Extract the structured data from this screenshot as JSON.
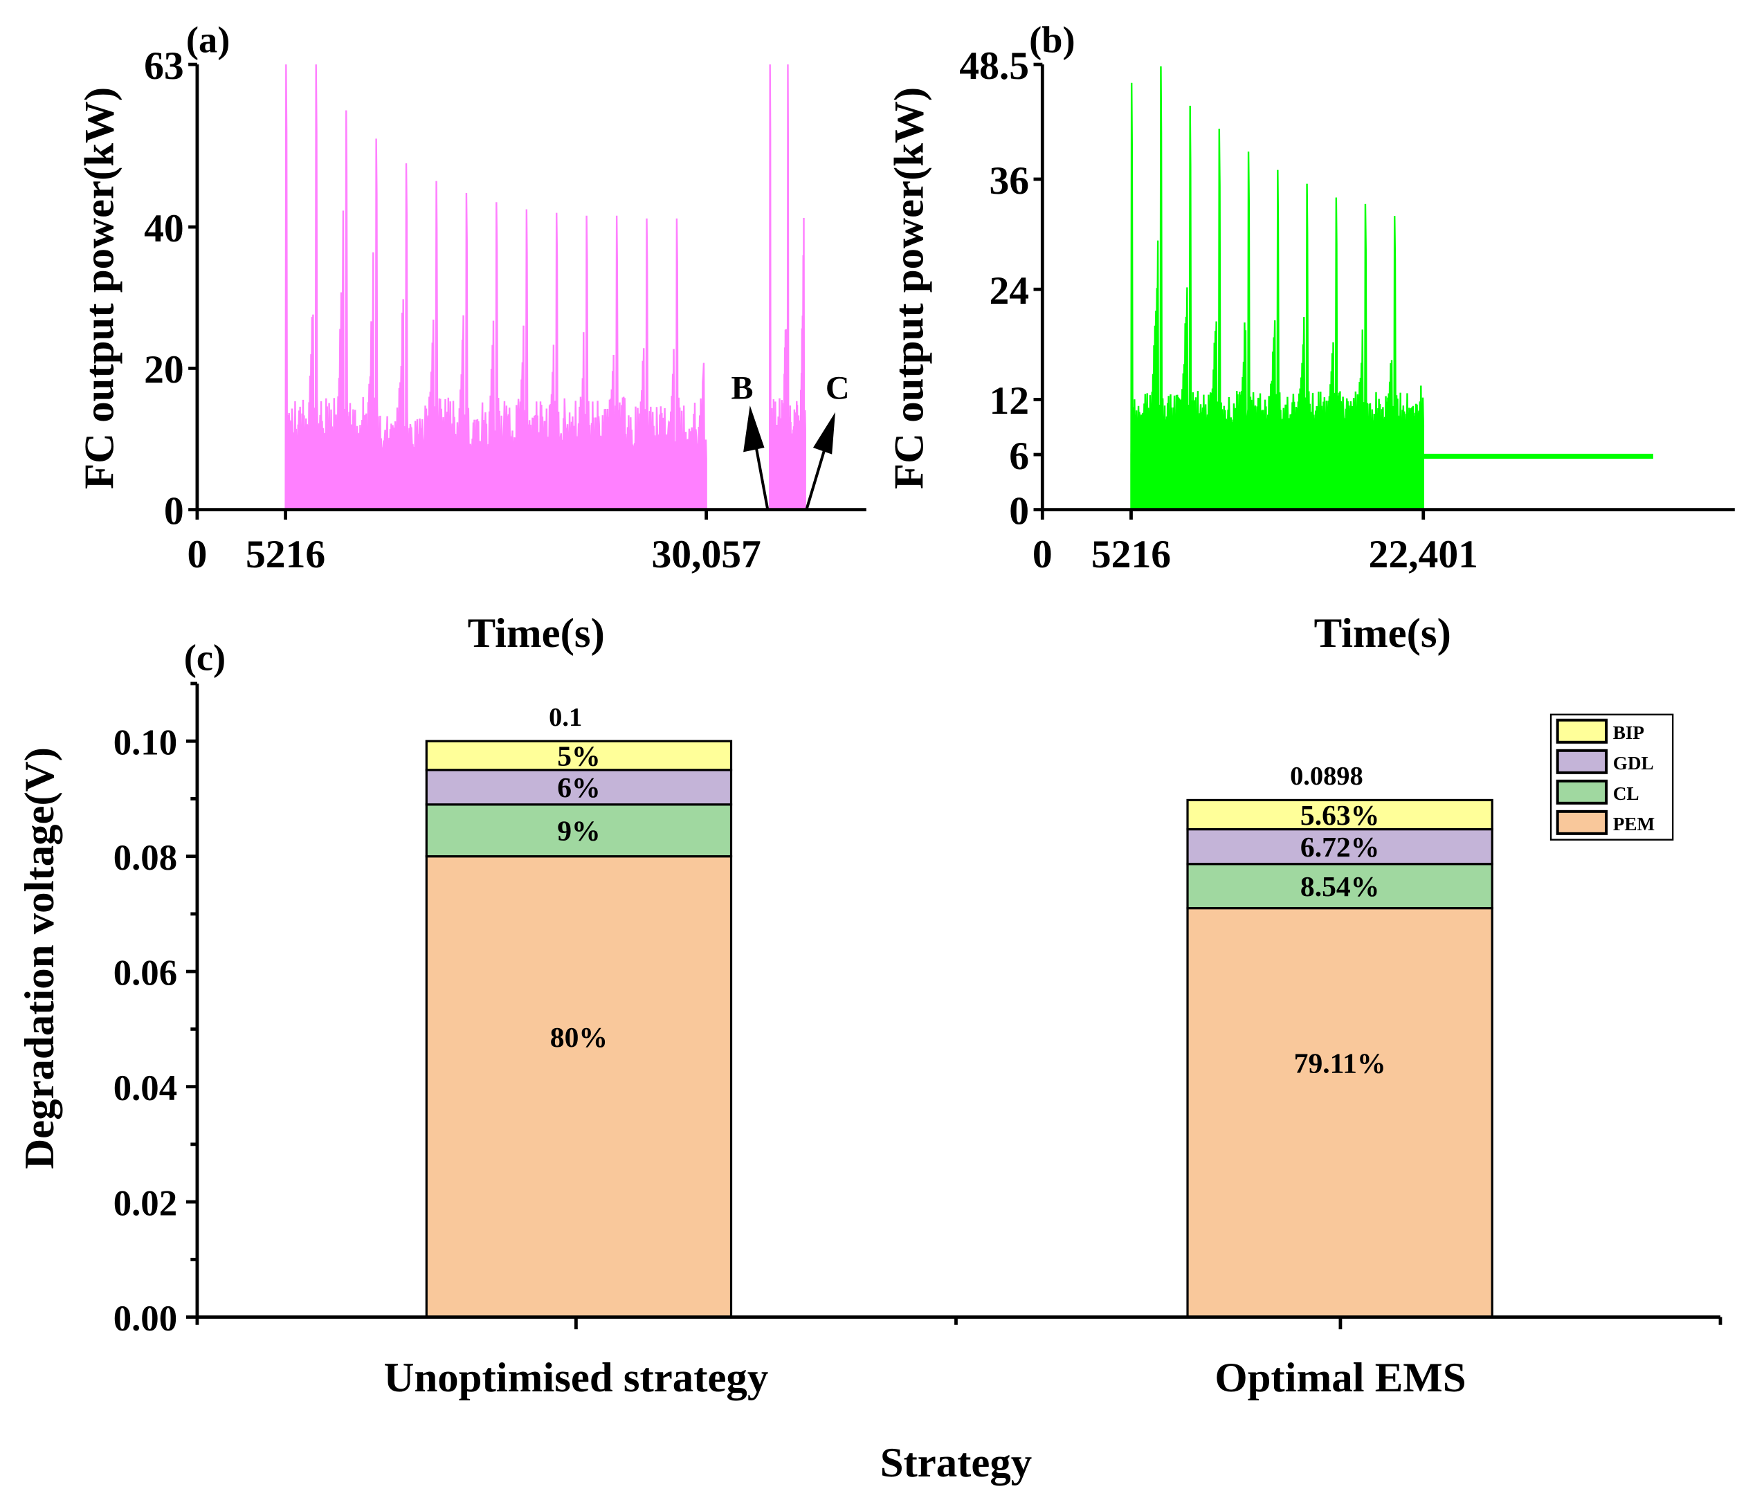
{
  "chart_data": [
    {
      "panel": "(a)",
      "type": "area",
      "xlabel": "Time(s)",
      "ylabel": "FC output power(kW)",
      "xticks": [
        0,
        5216,
        30057
      ],
      "xtick_labels": [
        "0",
        "5216",
        "30,057"
      ],
      "yticks": [
        0,
        20,
        40,
        63
      ],
      "ytick_labels": [
        "0",
        "20",
        "40",
        "63"
      ],
      "xlim": [
        0,
        39500
      ],
      "ylim": [
        0,
        63
      ],
      "color": "#ff80ff",
      "floor": 0,
      "bursts": [
        {
          "start": 5216,
          "end": 30057,
          "base": 16,
          "major_peaks": [
            63,
            63,
            56.5,
            52.5,
            49,
            46.5,
            44.8,
            43.5,
            42.5,
            42,
            41.6,
            41.6,
            41.2,
            41.2
          ],
          "minor_peaks": [
            32.5,
            43,
            37.5,
            34.5,
            31.5,
            29.5,
            28,
            27.5,
            27,
            26.5,
            26.5,
            26,
            26,
            25.5
          ]
        },
        {
          "start": 33800,
          "end": 35900,
          "base": 16,
          "major_peaks": [
            63,
            63
          ],
          "minor_peaks": [
            32,
            43
          ]
        }
      ],
      "annotations": [
        {
          "label": "B",
          "at_time": 33800
        },
        {
          "label": "C",
          "at_time": 35900
        }
      ]
    },
    {
      "panel": "(b)",
      "type": "area",
      "xlabel": "Time(s)",
      "ylabel": "FC output power(kW)",
      "xticks": [
        0,
        5216,
        22401
      ],
      "xtick_labels": [
        "0",
        "5216",
        "22,401"
      ],
      "yticks": [
        0,
        6,
        12,
        24,
        36,
        48.5
      ],
      "ytick_labels": [
        "0",
        "6",
        "12",
        "24",
        "36",
        "48.5"
      ],
      "xlim": [
        0,
        40000
      ],
      "ylim": [
        0,
        48.5
      ],
      "color": "#00ff00",
      "floor": 6,
      "tail_end": 35870,
      "bursts": [
        {
          "start": 5216,
          "end": 22401,
          "base": 13,
          "major_peaks": [
            46.5,
            48.3,
            44,
            41.5,
            39,
            37,
            35.5,
            34,
            33.3,
            32
          ],
          "minor_peaks": [
            30.5,
            26,
            23.5,
            23,
            21.5,
            21.5,
            20.5,
            20,
            18.5,
            14
          ]
        }
      ]
    },
    {
      "panel": "(c)",
      "type": "bar",
      "stacked": true,
      "xlabel": "Strategy",
      "ylabel": "Degradation voltage(V)",
      "categories": [
        "Unoptimised strategy",
        "Optimal EMS"
      ],
      "totals": [
        "0.1",
        "0.0898"
      ],
      "ylim": [
        0,
        0.11
      ],
      "yticks": [
        0.0,
        0.02,
        0.04,
        0.06,
        0.08,
        0.1
      ],
      "ytick_labels": [
        "0.00",
        "0.02",
        "0.04",
        "0.06",
        "0.08",
        "0.10"
      ],
      "legend_position": "top-right",
      "series": [
        {
          "name": "PEM",
          "color": "#f9c89b",
          "values": [
            0.08,
            0.071
          ],
          "labels": [
            "80%",
            "79.11%"
          ]
        },
        {
          "name": "CL",
          "color": "#a0d8a0",
          "values": [
            0.009,
            0.00767
          ],
          "labels": [
            "9%",
            "8.54%"
          ]
        },
        {
          "name": "GDL",
          "color": "#c4b4d8",
          "values": [
            0.006,
            0.00603
          ],
          "labels": [
            "6%",
            "6.72%"
          ]
        },
        {
          "name": "BIP",
          "color": "#ffff99",
          "values": [
            0.005,
            0.00506
          ],
          "labels": [
            "5%",
            "5.63%"
          ]
        }
      ]
    }
  ]
}
